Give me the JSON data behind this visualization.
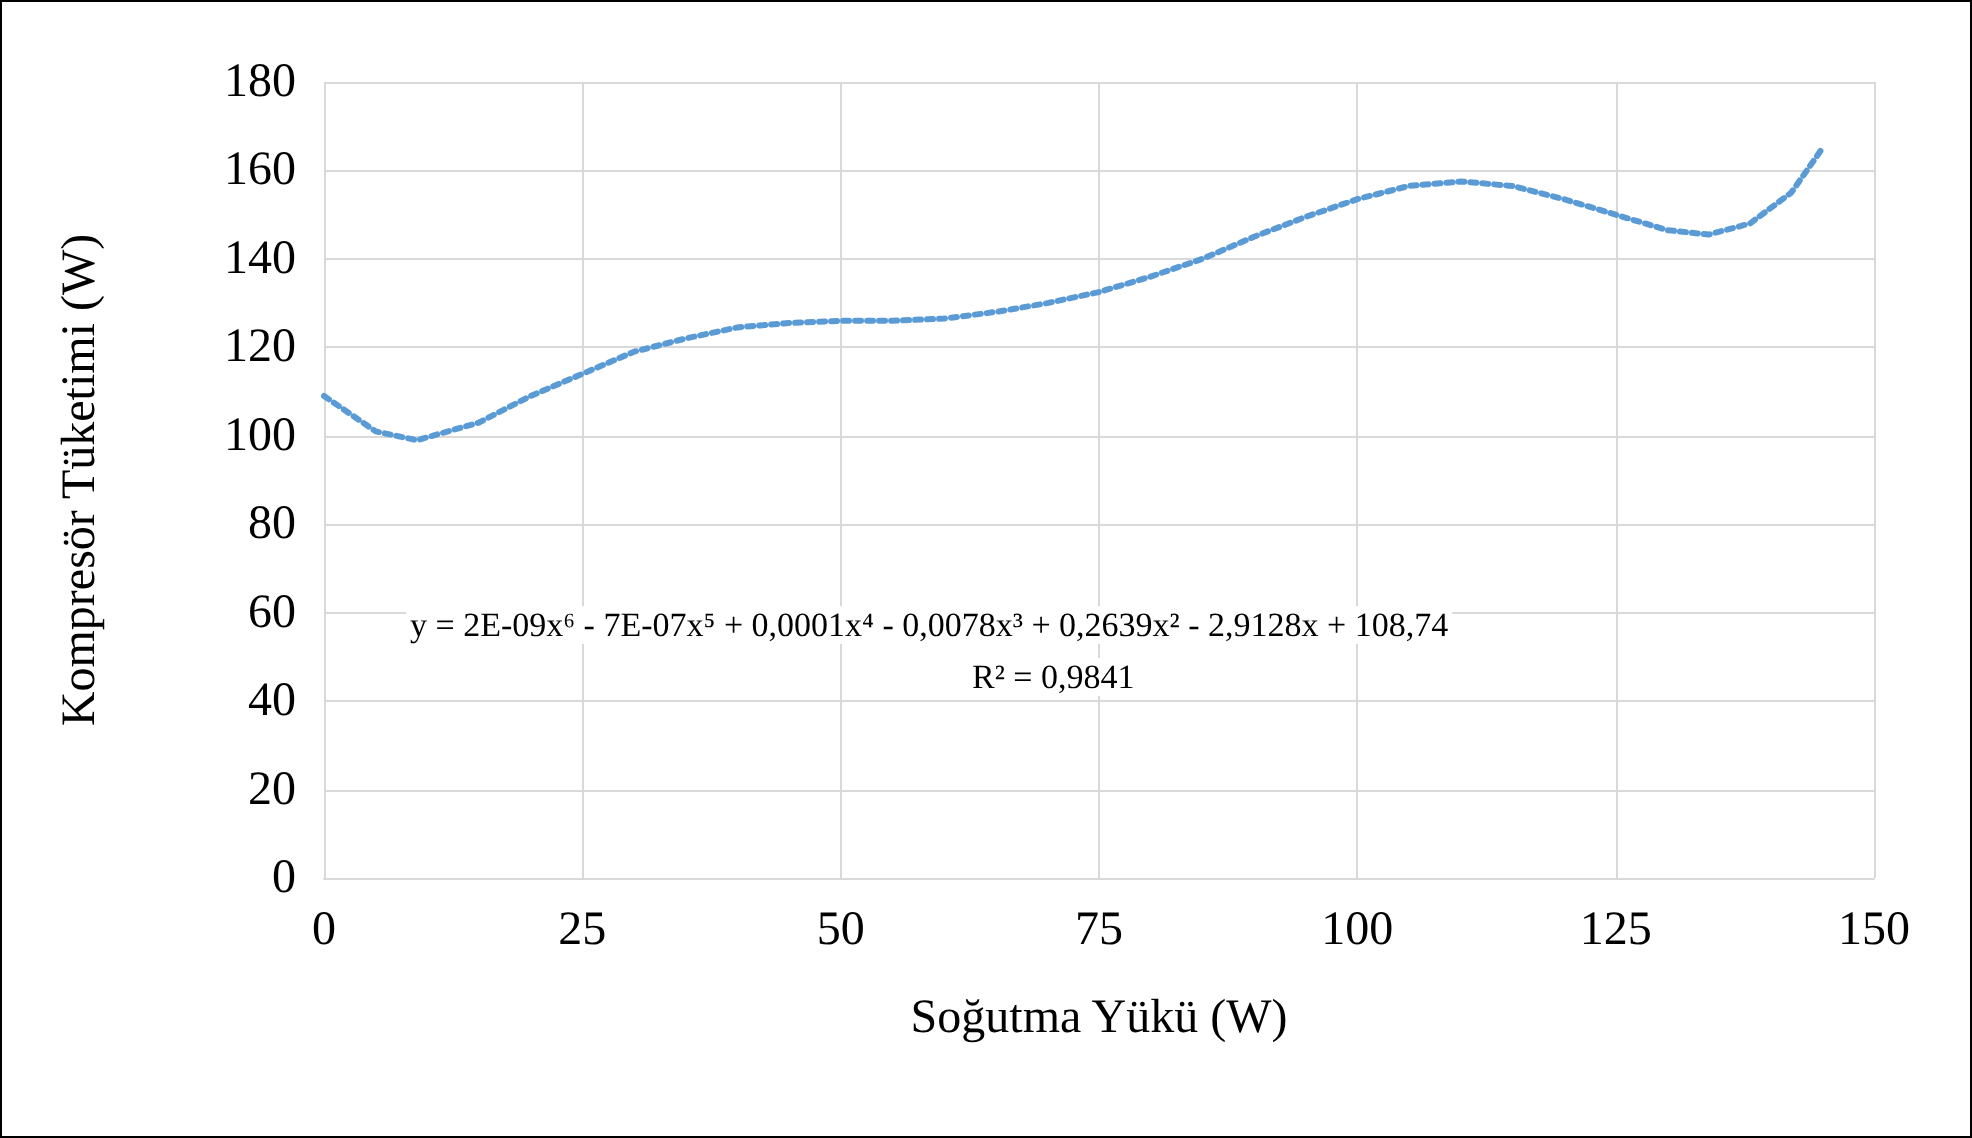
{
  "chart_data": {
    "type": "line",
    "xlabel": "Soğutma Yükü (W)",
    "ylabel": "Kompresör Tüketimi (W)",
    "annotations": [
      "y = 2E-09x⁶ - 7E-07x⁵ + 0,0001x⁴ - 0,0078x³ + 0,2639x² - 2,9128x + 108,74",
      "R² = 0,9841"
    ],
    "x": [
      0,
      5,
      9,
      15,
      20,
      25,
      30,
      35,
      40,
      45,
      50,
      55,
      60,
      65,
      70,
      75,
      80,
      85,
      90,
      95,
      100,
      105,
      110,
      115,
      120,
      125,
      130,
      134,
      138,
      142,
      145
    ],
    "series": [
      {
        "color": "#5b9bd5",
        "values": [
          109,
          101,
          99,
          103,
          109,
          114,
          119,
          122,
          124.5,
          125.5,
          126,
          126,
          126.5,
          128,
          130,
          132.5,
          136,
          140,
          145,
          149.5,
          153.5,
          156.5,
          157.5,
          156.5,
          153.5,
          150,
          146.5,
          145.5,
          148,
          155,
          165
        ]
      }
    ],
    "xlim": [
      0,
      150
    ],
    "xticks": [
      0,
      25,
      50,
      75,
      100,
      125,
      150
    ],
    "ylim": [
      0,
      180
    ],
    "yticks": [
      0,
      20,
      40,
      60,
      80,
      100,
      120,
      140,
      160,
      180
    ],
    "grid": true,
    "marker": "none",
    "line_style": "dotted"
  }
}
